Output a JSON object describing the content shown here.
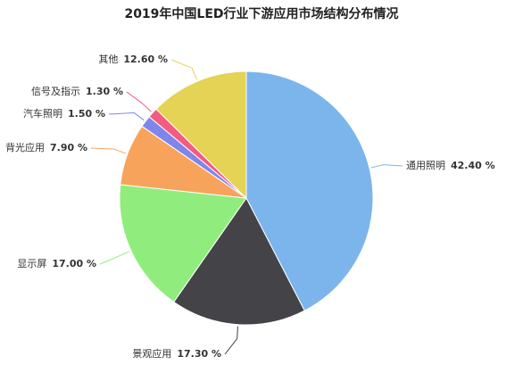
{
  "chart_data": {
    "type": "pie",
    "title": "2019年中国LED行业下游应用市场结构分布情况",
    "categories": [
      "通用照明",
      "景观应用",
      "显示屏",
      "背光应用",
      "汽车照明",
      "信号及指示",
      "其他"
    ],
    "values": [
      42.4,
      17.3,
      17.0,
      7.9,
      1.5,
      1.3,
      12.6
    ],
    "value_labels": [
      "42.40 %",
      "17.30 %",
      "17.00 %",
      "7.90 %",
      "1.50 %",
      "1.30 %",
      "12.60 %"
    ],
    "colors": [
      "#7cb5ec",
      "#434348",
      "#90ed7d",
      "#f7a35c",
      "#8085e9",
      "#f15c80",
      "#e4d354"
    ]
  }
}
